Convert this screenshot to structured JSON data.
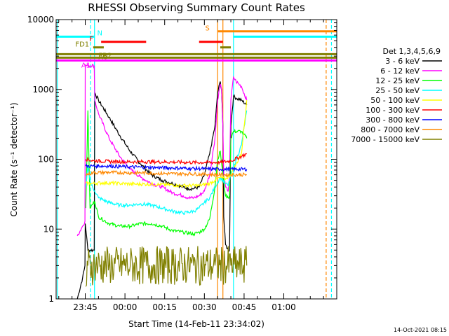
{
  "chart_data": {
    "type": "line",
    "title": "RHESSI Observing Summary Count Rates",
    "xlabel": "Start Time (14-Feb-11 23:34:02)",
    "ylabel": "Count Rate (s⁻¹ detector⁻¹)",
    "footer_date": "14-Oct-2021 08:15",
    "x_ticks": [
      "23:45",
      "00:00",
      "00:15",
      "00:30",
      "00:45",
      "01:00"
    ],
    "x_tick_minutes": [
      11,
      26,
      41,
      56,
      71,
      86
    ],
    "xlim_minutes": [
      0,
      106
    ],
    "y_scale": "log",
    "ylim": [
      1,
      10000
    ],
    "y_ticks": [
      "1",
      "10",
      "100",
      "1000",
      "10000"
    ],
    "legend_title": "Det 1,3,4,5,6,9",
    "series": [
      {
        "name": "3 - 6 keV",
        "color": "#000000",
        "points": [
          [
            8.0,
            1.0
          ],
          [
            10.0,
            2.0
          ],
          [
            10.9,
            3.0
          ],
          [
            11.0,
            12.0
          ],
          [
            11.5,
            8.0
          ],
          [
            12.0,
            5.0
          ],
          [
            13.0,
            5.0
          ],
          [
            14.0,
            5.0
          ],
          [
            14.4,
            5.0
          ],
          [
            14.6,
            900
          ],
          [
            16,
            700
          ],
          [
            20,
            400
          ],
          [
            24,
            220
          ],
          [
            28,
            130
          ],
          [
            32,
            85
          ],
          [
            36,
            60
          ],
          [
            40,
            50
          ],
          [
            44,
            45
          ],
          [
            48,
            40
          ],
          [
            50,
            38
          ],
          [
            52,
            38
          ],
          [
            54,
            40
          ],
          [
            56,
            60
          ],
          [
            58,
            120
          ],
          [
            60,
            300
          ],
          [
            61,
            900
          ],
          [
            62,
            1300
          ],
          [
            62.5,
            1000
          ],
          [
            63,
            300
          ],
          [
            63.3,
            15
          ],
          [
            64,
            6
          ],
          [
            65,
            5
          ],
          [
            65.5,
            5
          ],
          [
            66,
            300
          ],
          [
            67,
            800
          ],
          [
            68,
            750
          ],
          [
            70,
            700
          ],
          [
            72,
            600
          ]
        ]
      },
      {
        "name": "6 - 12 keV",
        "color": "#ff00ff",
        "points": [
          [
            8.0,
            8.0
          ],
          [
            10.0,
            11.0
          ],
          [
            10.9,
            13.0
          ],
          [
            11.0,
            2200
          ],
          [
            14.4,
            2200
          ],
          [
            14.6,
            700
          ],
          [
            16,
            450
          ],
          [
            20,
            200
          ],
          [
            24,
            110
          ],
          [
            28,
            72
          ],
          [
            32,
            55
          ],
          [
            36,
            45
          ],
          [
            40,
            40
          ],
          [
            44,
            33
          ],
          [
            48,
            30
          ],
          [
            50,
            28
          ],
          [
            52,
            28
          ],
          [
            54,
            30
          ],
          [
            56,
            35
          ],
          [
            58,
            60
          ],
          [
            60,
            200
          ],
          [
            61,
            700
          ],
          [
            62,
            1200
          ],
          [
            62.5,
            1000
          ],
          [
            63,
            300
          ],
          [
            63.3,
            60
          ],
          [
            64,
            40
          ],
          [
            65,
            35
          ],
          [
            65.5,
            60
          ],
          [
            66,
            700
          ],
          [
            67,
            1500
          ],
          [
            68,
            1300
          ],
          [
            70,
            1100
          ],
          [
            72,
            700
          ]
        ]
      },
      {
        "name": "12 - 25 keV",
        "color": "#00ff00",
        "points": [
          [
            11.2,
            20
          ],
          [
            12,
            500
          ],
          [
            12.8,
            20
          ],
          [
            14.6,
            25
          ],
          [
            16,
            15
          ],
          [
            20,
            12
          ],
          [
            24,
            11
          ],
          [
            28,
            11
          ],
          [
            32,
            12
          ],
          [
            36,
            12
          ],
          [
            40,
            11
          ],
          [
            44,
            9.5
          ],
          [
            48,
            9
          ],
          [
            52,
            8.5
          ],
          [
            54,
            9
          ],
          [
            56,
            10
          ],
          [
            58,
            14
          ],
          [
            60,
            40
          ],
          [
            61,
            100
          ],
          [
            62,
            130
          ],
          [
            63,
            60
          ],
          [
            64,
            30
          ],
          [
            65,
            28
          ],
          [
            65.5,
            30
          ],
          [
            66,
            200
          ],
          [
            67,
            250
          ],
          [
            70,
            250
          ],
          [
            72,
            200
          ]
        ]
      },
      {
        "name": "25 - 50 keV",
        "color": "#00ffff",
        "points": [
          [
            11.2,
            40
          ],
          [
            12,
            80
          ],
          [
            13,
            45
          ],
          [
            14.6,
            35
          ],
          [
            16,
            28
          ],
          [
            20,
            24
          ],
          [
            24,
            22
          ],
          [
            28,
            22
          ],
          [
            32,
            23
          ],
          [
            36,
            22
          ],
          [
            40,
            20
          ],
          [
            44,
            18
          ],
          [
            48,
            17
          ],
          [
            52,
            18
          ],
          [
            54,
            20
          ],
          [
            56,
            24
          ],
          [
            58,
            28
          ],
          [
            60,
            40
          ],
          [
            62,
            55
          ],
          [
            64,
            45
          ],
          [
            65,
            42
          ],
          [
            66,
            60
          ],
          [
            70,
            160
          ],
          [
            72,
            500
          ]
        ]
      },
      {
        "name": "50 - 100 keV",
        "color": "#ffff00",
        "points": [
          [
            11.2,
            45
          ],
          [
            14,
            45
          ],
          [
            18,
            46
          ],
          [
            24,
            45
          ],
          [
            30,
            44
          ],
          [
            36,
            44
          ],
          [
            42,
            43
          ],
          [
            48,
            42
          ],
          [
            54,
            42
          ],
          [
            58,
            45
          ],
          [
            60,
            50
          ],
          [
            62,
            55
          ],
          [
            64,
            52
          ],
          [
            66,
            60
          ],
          [
            70,
            120
          ],
          [
            72,
            700
          ]
        ]
      },
      {
        "name": "100 - 300 keV",
        "color": "#ff0000",
        "points": [
          [
            11.2,
            100
          ],
          [
            14,
            95
          ],
          [
            20,
            93
          ],
          [
            26,
            92
          ],
          [
            32,
            92
          ],
          [
            38,
            92
          ],
          [
            44,
            91
          ],
          [
            50,
            90
          ],
          [
            56,
            90
          ],
          [
            62,
            90
          ],
          [
            66,
            95
          ],
          [
            70,
            110
          ],
          [
            72,
            120
          ]
        ]
      },
      {
        "name": "300 - 800 keV",
        "color": "#0000ff",
        "points": [
          [
            11.2,
            80
          ],
          [
            14,
            80
          ],
          [
            20,
            80
          ],
          [
            26,
            78
          ],
          [
            32,
            77
          ],
          [
            38,
            76
          ],
          [
            44,
            75
          ],
          [
            50,
            74
          ],
          [
            56,
            73
          ],
          [
            62,
            72
          ],
          [
            66,
            72
          ],
          [
            72,
            72
          ]
        ]
      },
      {
        "name": "800 - 7000 keV",
        "color": "#ff8800",
        "points": [
          [
            11.2,
            60
          ],
          [
            14,
            64
          ],
          [
            20,
            65
          ],
          [
            26,
            64
          ],
          [
            32,
            64
          ],
          [
            38,
            63
          ],
          [
            44,
            62
          ],
          [
            50,
            62
          ],
          [
            56,
            61
          ],
          [
            62,
            60
          ],
          [
            66,
            60
          ],
          [
            72,
            60
          ]
        ]
      },
      {
        "name": "7000 - 15000 keV",
        "color": "#808000",
        "points": [
          [
            11.2,
            1.5
          ],
          [
            12,
            3.0
          ],
          [
            15,
            3.0
          ],
          [
            20,
            3.0
          ],
          [
            28,
            3.0
          ],
          [
            36,
            3.0
          ],
          [
            44,
            3.0
          ],
          [
            52,
            3.0
          ],
          [
            60,
            3.0
          ],
          [
            66,
            3.0
          ],
          [
            72,
            3.0
          ]
        ]
      }
    ],
    "flags": [
      {
        "label": "N",
        "color": "#00ffff",
        "level": 5700,
        "segments": [
          [
            0,
            14.5
          ],
          [
            67,
            106
          ]
        ]
      },
      {
        "label": "F",
        "color": "#ff0000",
        "level": 4800,
        "segments": [
          [
            17,
            34
          ],
          [
            54,
            63
          ]
        ]
      },
      {
        "label": "S",
        "color": "#ff8800",
        "level": 6800,
        "segments": [
          [
            61,
            106
          ]
        ]
      },
      {
        "label": "FD1",
        "color": "#808000",
        "level": 4000,
        "segments": [
          [
            14,
            18
          ],
          [
            62,
            66
          ]
        ]
      },
      {
        "label": "FR2",
        "color": "#808000",
        "level": 3200,
        "segments": [
          [
            0,
            106
          ]
        ]
      },
      {
        "label": "A0",
        "color": "#808000",
        "level": 2850,
        "segments": [
          [
            0,
            106
          ]
        ]
      },
      {
        "label": "A1",
        "color": "#ff00ff",
        "level": 2600,
        "segments": [
          [
            0,
            106
          ]
        ]
      }
    ],
    "vertical_markers": [
      {
        "minute": 0.5,
        "color": "#00ffff",
        "style": "solid"
      },
      {
        "minute": 13,
        "color": "#00ffff",
        "style": "dashed"
      },
      {
        "minute": 14.5,
        "color": "#00ffff",
        "style": "solid"
      },
      {
        "minute": 67,
        "color": "#00ffff",
        "style": "solid"
      },
      {
        "minute": 104,
        "color": "#00ffff",
        "style": "dashed"
      },
      {
        "minute": 61,
        "color": "#ff8800",
        "style": "solid"
      },
      {
        "minute": 63,
        "color": "#ff8800",
        "style": "solid"
      },
      {
        "minute": 102,
        "color": "#ff8800",
        "style": "dashed"
      }
    ]
  }
}
